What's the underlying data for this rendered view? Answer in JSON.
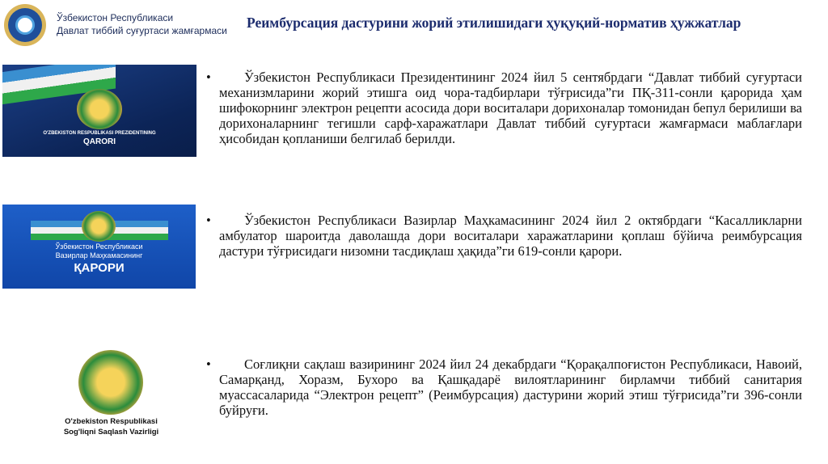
{
  "header": {
    "org_line1": "Ўзбекистон Республикаси",
    "org_line2": "Давлат тиббий суғуртаси жамғармаси",
    "title": "Реимбурсация дастурини жорий этилишидаги ҳуқуқий-норматив ҳужжатлар"
  },
  "images": [
    {
      "line1": "O'ZBEKISTON RESPUBLIKASI PREZIDENTINING",
      "line2": "QARORI"
    },
    {
      "line1": "Ўзбекистон Республикаси",
      "line2": "Вазирлар Маҳкамасининг",
      "line3": "ҚАРОРИ"
    },
    {
      "line1": "O'zbekiston Respublikasi",
      "line2": "Sog'liqni Saqlash Vazirligi"
    }
  ],
  "bullet_symbol": "•",
  "paragraphs": [
    "Ўзбекистон Республикаси Президентининг 2024 йил 5 сентябрдаги “Давлат тиббий суғуртаси механизмларини жорий этишга оид чора-тадбирлари тўғрисида”ги ПҚ-311-сонли қарорида ҳам шифокорнинг электрон рецепти асосида дори воситалари дорихоналар томонидан бепул берилиши ва дорихоналарнинг тегишли сарф-харажатлари Давлат тиббий суғуртаси жамғармаси маблағлари ҳисобидан қопланиши белгилаб берилди.",
    "Ўзбекистон Республикаси Вазирлар Маҳкамасининг 2024 йил 2 октябрдаги “Касалликларни амбулатор шароитда даволашда дори воситалари харажатларини қоплаш бўйича реимбурсация дастури тўғрисидаги низомни тасдиқлаш ҳақида”ги 619-сонли қарори.",
    "Соғлиқни сақлаш вазирининг 2024 йил 24 декабрдаги “Қорақалпоғистон Республикаси, Навоий, Самарқанд, Хоразм, Бухоро ва Қашқадарё вилоятларининг бирламчи тиббий санитария муассасаларида “Электрон рецепт” (Реимбурсация) дастурини жорий этиш тўғрисида”ги 396-сонли буйруғи."
  ]
}
